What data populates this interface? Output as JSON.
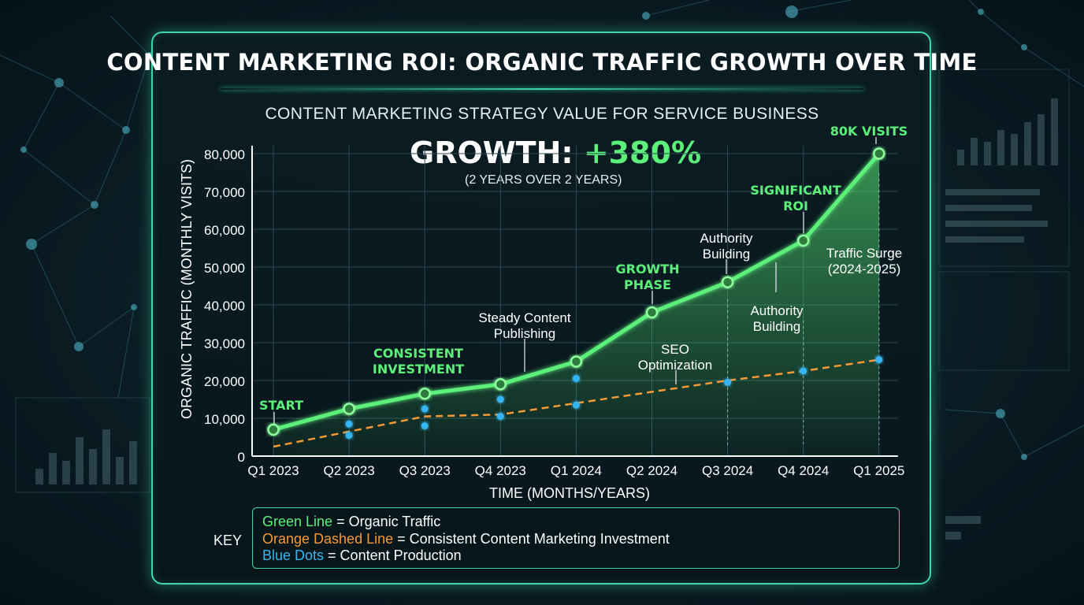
{
  "title": "Content Marketing ROI: Organic Traffic Growth Over Time",
  "subtitle": "CONTENT MARKETING STRATEGY VALUE FOR SERVICE BUSINESS",
  "growth": {
    "label": "GROWTH:",
    "value": "+380%",
    "note": "(2 YEARS OVER 2 YEARS)"
  },
  "colors": {
    "organic": "#5cf07a",
    "investment": "#f59a36",
    "production": "#36b6f2",
    "accent": "#3fd6a8"
  },
  "chart_data": {
    "type": "line",
    "title": "Content Marketing ROI: Organic Traffic Growth Over Time",
    "subtitle": "CONTENT MARKETING STRATEGY VALUE FOR SERVICE BUSINESS",
    "xlabel": "TIME (MONTHS/YEARS)",
    "ylabel": "ORGANIC TRAFFIC (MONTHLY VISITS)",
    "categories": [
      "Q1 2023",
      "Q2 2023",
      "Q3 2023",
      "Q4 2023",
      "Q1 2024",
      "Q2 2024",
      "Q3 2024",
      "Q4 2024",
      "Q1 2025"
    ],
    "ylim": [
      0,
      80000
    ],
    "yticks": [
      0,
      10000,
      20000,
      30000,
      40000,
      50000,
      60000,
      70000,
      80000
    ],
    "ytick_labels": [
      "0",
      "10,000",
      "20,000",
      "30,000",
      "40,000",
      "50,000",
      "60,000",
      "70,000",
      "80,000"
    ],
    "grid": true,
    "series": [
      {
        "name": "Green Line",
        "values": [
          7000,
          12500,
          16500,
          19000,
          25000,
          38000,
          46000,
          57000,
          80000
        ]
      },
      {
        "name": "Orange Dashed Line",
        "values": [
          2500,
          6500,
          10500,
          11000,
          14000,
          17000,
          20000,
          22500,
          25500
        ]
      }
    ],
    "blue_dots": [
      {
        "x": "Q2 2023",
        "y": 5500
      },
      {
        "x": "Q2 2023",
        "y": 8500
      },
      {
        "x": "Q3 2023",
        "y": 8000
      },
      {
        "x": "Q3 2023",
        "y": 12500
      },
      {
        "x": "Q4 2023",
        "y": 10500
      },
      {
        "x": "Q4 2023",
        "y": 15000
      },
      {
        "x": "Q1 2024",
        "y": 13500
      },
      {
        "x": "Q1 2024",
        "y": 20500
      },
      {
        "x": "Q3 2024",
        "y": 19500
      },
      {
        "x": "Q4 2024",
        "y": 22500
      },
      {
        "x": "Q1 2025",
        "y": 25500
      }
    ],
    "annotations": [
      {
        "text": "START",
        "x": "Q1 2023",
        "color": "green",
        "lines": [
          "START"
        ]
      },
      {
        "text": "CONSISTENT INVESTMENT",
        "x": "Q3 2023",
        "color": "green",
        "lines": [
          "CONSISTENT",
          "INVESTMENT"
        ]
      },
      {
        "text": "Steady Content Publishing",
        "x": "Q4 2023",
        "color": "white",
        "lines": [
          "Steady Content",
          "Publishing"
        ]
      },
      {
        "text": "GROWTH PHASE",
        "x": "Q2 2024",
        "color": "green",
        "lines": [
          "GROWTH",
          "PHASE"
        ]
      },
      {
        "text": "SEO Optimization",
        "x": "Q2 2024",
        "color": "white",
        "lines": [
          "SEO",
          "Optimization"
        ]
      },
      {
        "text": "Authority Building",
        "x": "Q3 2024",
        "color": "white",
        "lines": [
          "Authority",
          "Building"
        ]
      },
      {
        "text": "Authority Building",
        "x": "Q4 2024",
        "color": "white",
        "lines": [
          "Authority",
          "Building"
        ]
      },
      {
        "text": "SIGNIFICANT ROI",
        "x": "Q4 2024",
        "color": "green",
        "lines": [
          "SIGNIFICANT",
          "ROI"
        ]
      },
      {
        "text": "Traffic Surge (2024-2025)",
        "x": "Q1 2025",
        "color": "white",
        "lines": [
          "Traffic Surge",
          "(2024-2025)"
        ]
      },
      {
        "text": "80K VISITS",
        "x": "Q1 2025",
        "color": "green",
        "lines": [
          "80K VISITS"
        ]
      }
    ]
  },
  "key": {
    "label": "KEY",
    "rows": [
      {
        "name": "Green Line",
        "desc": " = Organic Traffic"
      },
      {
        "name": "Orange Dashed Line",
        "desc": " = Consistent Content Marketing Investment"
      },
      {
        "name": "Blue Dots",
        "desc": " = Content Production"
      }
    ]
  }
}
